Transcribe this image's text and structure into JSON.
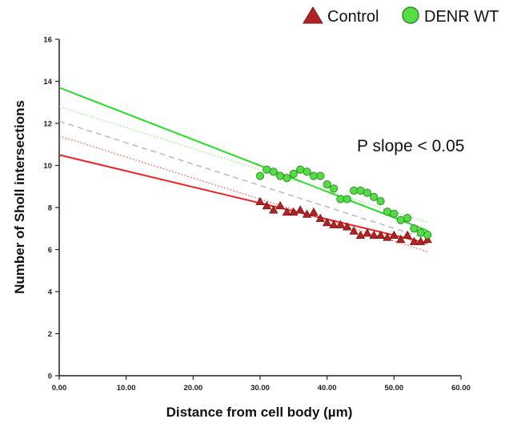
{
  "chart_data": {
    "type": "scatter",
    "xlabel": "Distance from cell body (µm)",
    "ylabel": "Number of Sholl intersections",
    "xlim": [
      0,
      60
    ],
    "ylim": [
      0,
      16
    ],
    "x_ticks": [
      "0.00",
      "10.00",
      "20.00",
      "30.00",
      "40.00",
      "50.00",
      "60.00"
    ],
    "y_ticks": [
      "0",
      "2",
      "4",
      "6",
      "8",
      "10",
      "12",
      "14",
      "16"
    ],
    "annotation": "P slope < 0.05",
    "legend_position": "top-right",
    "series": [
      {
        "name": "Control",
        "marker": "triangle",
        "color": "#b22222",
        "x": [
          30,
          31,
          32,
          33,
          34,
          35,
          36,
          37,
          38,
          39,
          40,
          41,
          42,
          43,
          44,
          45,
          46,
          47,
          48,
          49,
          50,
          51,
          52,
          53,
          54,
          55
        ],
        "y": [
          8.3,
          8.1,
          7.9,
          8.1,
          7.8,
          7.8,
          7.9,
          7.7,
          7.8,
          7.5,
          7.3,
          7.2,
          7.2,
          7.1,
          6.9,
          6.7,
          6.8,
          6.7,
          6.7,
          6.6,
          6.7,
          6.5,
          6.7,
          6.4,
          6.4,
          6.5
        ]
      },
      {
        "name": "DENR WT",
        "marker": "circle",
        "color": "#55dd44",
        "x": [
          30,
          31,
          32,
          33,
          34,
          35,
          36,
          37,
          38,
          39,
          40,
          41,
          42,
          43,
          44,
          45,
          46,
          47,
          48,
          49,
          50,
          51,
          52,
          53,
          54,
          55
        ],
        "y": [
          9.5,
          9.8,
          9.7,
          9.5,
          9.4,
          9.6,
          9.8,
          9.7,
          9.5,
          9.5,
          9.1,
          8.9,
          8.4,
          8.4,
          8.8,
          8.8,
          8.7,
          8.5,
          8.3,
          7.8,
          7.7,
          7.4,
          7.5,
          7.0,
          6.8,
          6.7
        ]
      }
    ],
    "fit_lines": [
      {
        "color": "#ee2222",
        "style": "solid",
        "x": [
          0,
          55
        ],
        "y": [
          10.5,
          6.3
        ]
      },
      {
        "color": "#ee5555",
        "style": "dotted",
        "x": [
          0,
          55
        ],
        "y": [
          11.4,
          5.9
        ]
      },
      {
        "color": "#22dd22",
        "style": "solid",
        "x": [
          0,
          55
        ],
        "y": [
          13.7,
          6.9
        ]
      },
      {
        "color": "#88ee66",
        "style": "dotted",
        "x": [
          0,
          55
        ],
        "y": [
          12.8,
          7.3
        ]
      },
      {
        "color": "#b0b0b0",
        "style": "dashed",
        "x": [
          0,
          55
        ],
        "y": [
          12.1,
          6.5
        ]
      }
    ]
  }
}
